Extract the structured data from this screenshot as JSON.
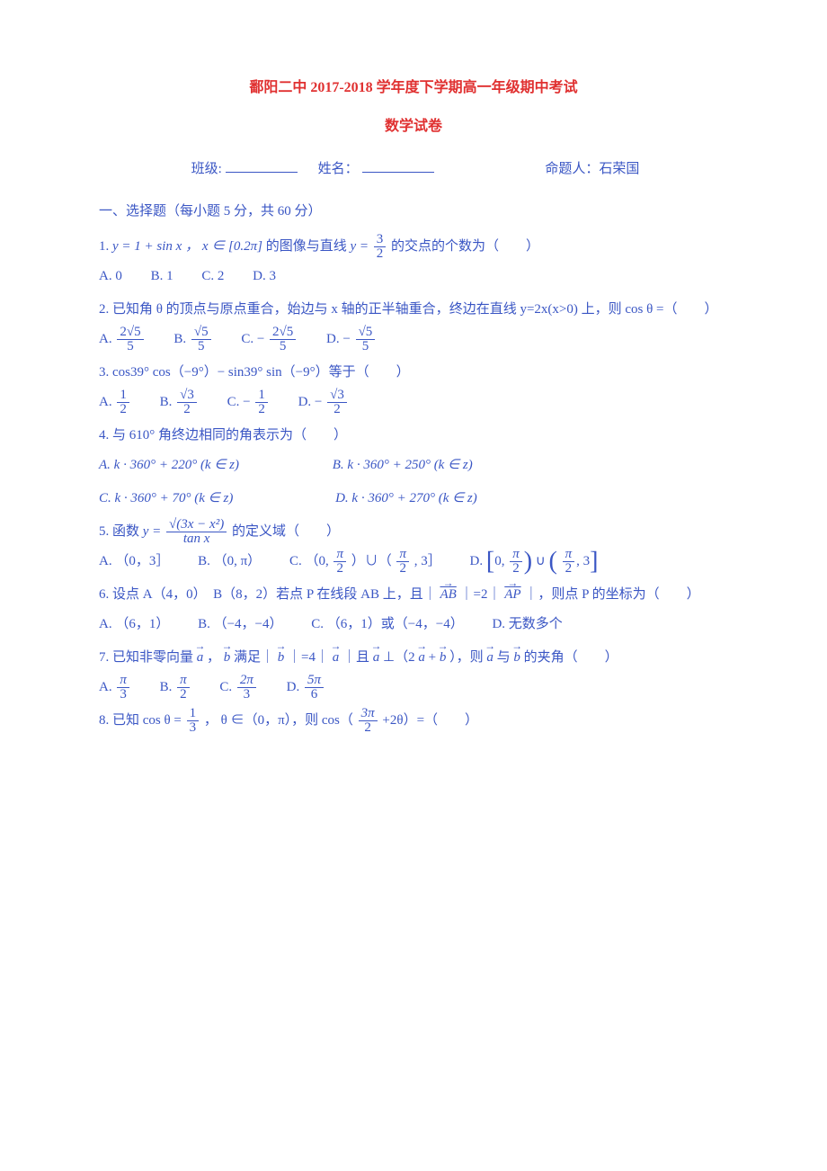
{
  "colors": {
    "text": "#3a56c4",
    "heading": "#e03030",
    "background": "#ffffff",
    "watermark": "#e8f0fb"
  },
  "fonts": {
    "body_family": "SimSun",
    "body_size_pt": 11,
    "heading_size_pt": 12,
    "line_height": 2.2
  },
  "title": "鄱阳二中 2017-2018 学年度下学期高一年级期中考试",
  "subtitle": "数学试卷",
  "header": {
    "class_label": "班级:",
    "name_label": "姓名：",
    "author_label": "命题人：",
    "author_name": "石荣国"
  },
  "section_heading": "一、选择题（每小题 5 分，共 60 分）",
  "q1": {
    "stem_pre": "1. ",
    "stem_post": " 的图像与直线 ",
    "stem_end": " 的交点的个数为（　　）",
    "eq1_lhs": "y",
    "eq1_rhs": " = 1 + sin x ，",
    "eq1_cond": " x ∈ [0.2π]",
    "eq2_lhs": "y = ",
    "frac_num": "3",
    "frac_den": "2",
    "opts": {
      "A": "A. 0",
      "B": "B. 1",
      "C": "C. 2",
      "D": "D. 3"
    }
  },
  "q2": {
    "stem": "2. 已知角 θ 的顶点与原点重合，始边与 x 轴的正半轴重合，终边在直线 y=2x(x>0) 上，则 cos θ =（　　）",
    "opts": {
      "A_pre": "A. ",
      "A_num": "2√5",
      "A_den": "5",
      "B_pre": "B. ",
      "B_num": "√5",
      "B_den": "5",
      "C_pre": "C. −",
      "C_num": "2√5",
      "C_den": "5",
      "D_pre": "D. −",
      "D_num": "√5",
      "D_den": "5"
    }
  },
  "q3": {
    "stem": "3. cos39° cos（−9°）− sin39° sin（−9°）等于（　　）",
    "opts": {
      "A_pre": "A. ",
      "A_num": "1",
      "A_den": "2",
      "B_pre": "B. ",
      "B_num": "√3",
      "B_den": "2",
      "C_pre": "C. −",
      "C_num": "1",
      "C_den": "2",
      "D_pre": "D. −",
      "D_num": "√3",
      "D_den": "2"
    }
  },
  "q4": {
    "stem": "4. 与 610° 角终边相同的角表示为（　　）",
    "opts": {
      "A": "A. k · 360° + 220° (k ∈ z)",
      "B": "B. k · 360° + 250° (k ∈ z)",
      "C": "C. k · 360° + 70° (k ∈ z)",
      "D": "D. k · 360° + 270° (k ∈ z)"
    }
  },
  "q5": {
    "stem_pre": "5. 函数 ",
    "stem_post": " 的定义域（　　）",
    "eq_lhs": "y = ",
    "frac_num": "√(3x − x²)",
    "frac_den": "tan x",
    "opts": {
      "A": "A. （0，3］",
      "B": "B. （0, π）",
      "C_pre": "C. （0, ",
      "C_mid": "）∪（",
      "C_post": ", 3］",
      "D_pre": "D. ",
      "D_mid": "∪",
      "pi2_num": "π",
      "pi2_den": "2",
      "D_right_open": ", 3",
      "D_left_open": "0, "
    }
  },
  "q6": {
    "stem_pre": "6. 设点 A（4，0）　B（8，2）若点 P 在线段 AB 上，且｜",
    "stem_mid": "｜=2｜",
    "stem_post": "｜，则点 P 的坐标为（　　）",
    "vec1": "AB",
    "vec2": "AP",
    "opts": {
      "A": "A. （6，1）",
      "B": "B. （−4，−4）",
      "C": "C. （6，1）或（−4，−4）",
      "D": "D. 无数多个"
    }
  },
  "q7": {
    "stem_pre": "7. 已知非零向量 ",
    "stem_p2": " ，",
    "stem_p3": " 满足｜",
    "stem_p4": "｜=4｜",
    "stem_p5": "｜且 ",
    "stem_p6": " ⊥（2",
    "stem_p7": " + ",
    "stem_p8": "），则 ",
    "stem_p9": " 与 ",
    "stem_p10": " 的夹角（　　）",
    "vec_a": "a",
    "vec_b": "b",
    "opts": {
      "A_pre": "A. ",
      "A_num": "π",
      "A_den": "3",
      "B_pre": "B. ",
      "B_num": "π",
      "B_den": "2",
      "C_pre": "C. ",
      "C_num": "2π",
      "C_den": "3",
      "D_pre": "D. ",
      "D_num": "5π",
      "D_den": "6"
    }
  },
  "q8": {
    "stem_pre": "8. 已知 cos θ = ",
    "stem_mid": "， θ ∈（0，π），则 cos（",
    "stem_post": " +2θ）=（　　）",
    "f1_num": "1",
    "f1_den": "3",
    "f2_num": "3π",
    "f2_den": "2"
  },
  "watermark_text": ""
}
